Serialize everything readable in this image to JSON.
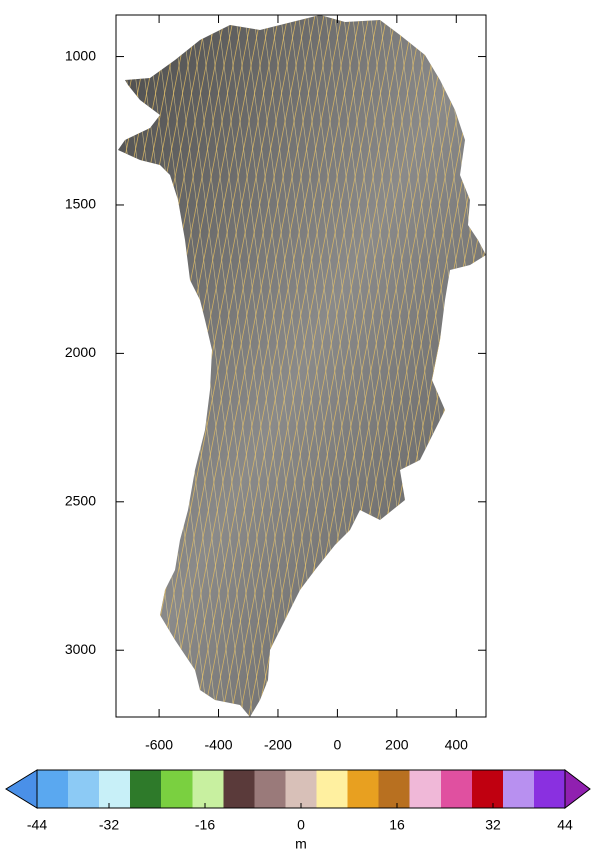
{
  "chart_data": {
    "type": "map",
    "xlim": [
      -745,
      500
    ],
    "ylim": [
      860,
      3225
    ],
    "xticks": [
      -600,
      -400,
      -200,
      0,
      200,
      400
    ],
    "yticks": [
      1000,
      1500,
      2000,
      2500,
      3000
    ],
    "colorbar": {
      "lim": [
        -44,
        44
      ],
      "ticks": [
        -44,
        -32,
        -16,
        0,
        16,
        32,
        44
      ],
      "label": "m",
      "colors": [
        "#5aa8f0",
        "#8ccaf5",
        "#c8f0f8",
        "#2e7a2a",
        "#7ad040",
        "#c8f0a0",
        "#5a3a3a",
        "#9a7a7a",
        "#d8c0b8",
        "#fff0a0",
        "#e8a020",
        "#b87020",
        "#f0b8d8",
        "#e050a0",
        "#c00010",
        "#b890f0",
        "#8a30e0"
      ],
      "under_color": "#4a90e8",
      "over_color": "#9020b0"
    }
  }
}
